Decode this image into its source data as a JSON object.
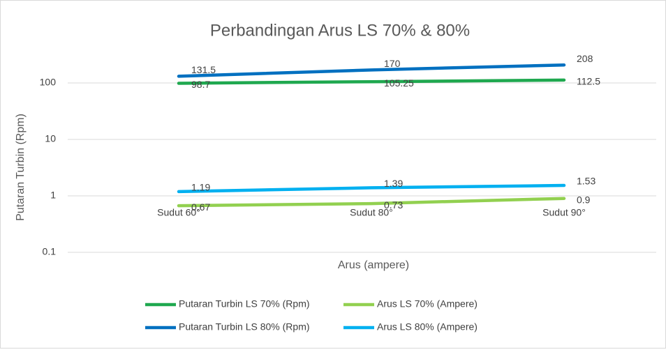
{
  "chart_data": {
    "type": "line",
    "title": "Perbandingan Arus LS 70% & 80%",
    "x_label": "Arus (ampere)",
    "y_label": "Putaran Turbin (Rpm)",
    "categories": [
      "Sudut 60°",
      "Sudut 80°",
      "Sudut 90°"
    ],
    "series": [
      {
        "name": "Putaran Turbin LS 70% (Rpm)",
        "color": "#1fa84f",
        "values": [
          98.7,
          105.25,
          112.5
        ]
      },
      {
        "name": "Arus LS 70% (Ampere)",
        "color": "#92d050",
        "values": [
          0.67,
          0.73,
          0.9
        ]
      },
      {
        "name": "Putaran Turbin LS 80% (Rpm)",
        "color": "#0070c0",
        "values": [
          131.5,
          170,
          208
        ]
      },
      {
        "name": "Arus LS 80% (Ampere)",
        "color": "#00b0f0",
        "values": [
          1.19,
          1.39,
          1.53
        ]
      }
    ],
    "ylim": [
      0.1,
      1000
    ],
    "yticks": [
      0.1,
      1,
      10,
      100
    ],
    "log_y": true,
    "grid": true,
    "legend": "bottom"
  }
}
